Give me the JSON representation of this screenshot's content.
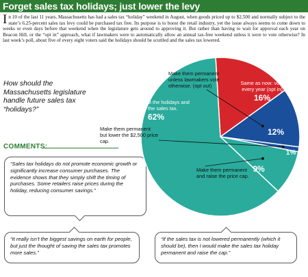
{
  "headline": "Forget sales tax holidays; just lower the levy",
  "intro": {
    "dropcap": "I",
    "text": "n 10 of the last 11 years, Massachusetts has had a sales tax “holiday” weekend in August, when goods priced up to $2,500 and normally subject to the state’s 6.25-percent sales tax levy could be purchased tax free. Its purpose is to boost the retail industry, yet the issue always seems to come down to weeks or even days before that weekend when the legislature gets around to approving it. But rather than having to wait for approval each year on Beacon Hill, or the “opt in” approach, what if lawmakers were to automatically allow an annual tax-free weekend unless it were to vote otherwise? In last week’s poll, about five of every eight voters said the holidays should be scuttled and the sales tax lowered."
  },
  "question": "How should the Massachusetts legislature handle future sales tax “holidays?”",
  "comments_label": "COMMENTS:",
  "comments": [
    "“Sales tax holidays do not promote economic growth or significantly increase consumer purchases. The evidence shows that they simply shift the timing of purchases. Some retailers raise prices during the holiday, reducing consumer savings.”",
    "“It really isn’t the biggest savings on earth for people, but just the thought of saving the sales tax promotes more sales.”",
    "“If the sales tax is not lowered permanently (which it should be), then I would make the sales tax holiday permanent and raise the cap.”"
  ],
  "chart_data": {
    "type": "pie",
    "title": "",
    "slices": [
      {
        "label": "Same as now: vote every year (opt in)",
        "value": 16,
        "pct_label": "16%",
        "color": "#d7262b"
      },
      {
        "label": "Make them permanent unless lawmakers vote otherwise. (opt out)",
        "value": 12,
        "pct_label": "12%",
        "color": "#1a4f9c"
      },
      {
        "label": "",
        "value": 1,
        "pct_label": "1%",
        "color": "#1a4f9c"
      },
      {
        "label": "Make them permanent and raise the price cap.",
        "value": 9,
        "pct_label": "9%",
        "color": "#2aab9c"
      },
      {
        "label": "Forget about the holidays and lower the sales tax.",
        "value": 62,
        "pct_label": "62%",
        "color": "#2aab9c"
      }
    ],
    "callout_lower_cap": "Make them permanent but lower the $2,500 price cap."
  },
  "colors": {
    "headline_bg": "#2e7d34",
    "red": "#d7262b",
    "blue": "#1a4f9c",
    "teal": "#2aab9c",
    "text": "#111111"
  }
}
